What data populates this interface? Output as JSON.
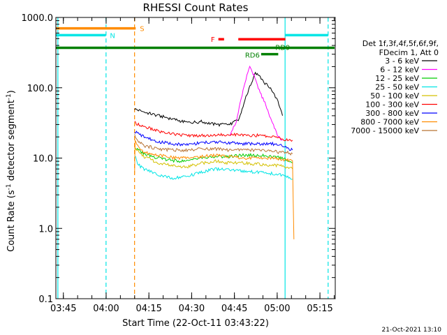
{
  "chart_data": {
    "type": "line",
    "title": "RHESSI Count Rates",
    "xlabel": "Start Time (22-Oct-11 03:43:22)",
    "ylabel_prefix": "Count Rate (s",
    "ylabel_sup": "-1",
    "ylabel_mid": " detector segment",
    "ylabel_sup2": "-1",
    "ylabel_suffix": ")",
    "y_scale": "log",
    "ylim": [
      0.1,
      1000
    ],
    "y_ticks": [
      {
        "value": 0.1,
        "label": "0.1"
      },
      {
        "value": 1,
        "label": "1.0"
      },
      {
        "value": 10,
        "label": "10.0"
      },
      {
        "value": 100,
        "label": "100.0"
      },
      {
        "value": 1000,
        "label": "1000.0"
      }
    ],
    "x_range_minutes": [
      -1,
      97
    ],
    "x_ticks": [
      {
        "value": 1.63,
        "label": "03:45"
      },
      {
        "value": 16.63,
        "label": "04:00"
      },
      {
        "value": 31.63,
        "label": "04:15"
      },
      {
        "value": 46.63,
        "label": "04:30"
      },
      {
        "value": 61.63,
        "label": "04:45"
      },
      {
        "value": 76.63,
        "label": "05:00"
      },
      {
        "value": 91.63,
        "label": "05:15"
      }
    ],
    "legend_header": [
      "Det 1f,3f,4f,5f,6f,9f,",
      "FDecim 1, Att 0"
    ],
    "series": [
      {
        "name": "3 - 6 keV",
        "color": "#000000",
        "points": [
          [
            26.6,
            50
          ],
          [
            30,
            45
          ],
          [
            35,
            40
          ],
          [
            40,
            36
          ],
          [
            45,
            32
          ],
          [
            50,
            33
          ],
          [
            55,
            30
          ],
          [
            60,
            30
          ],
          [
            63,
            35
          ],
          [
            65,
            60
          ],
          [
            67,
            105
          ],
          [
            69,
            160
          ],
          [
            70,
            150
          ],
          [
            72,
            120
          ],
          [
            74,
            100
          ],
          [
            76,
            75
          ],
          [
            77.5,
            55
          ],
          [
            78.5,
            40
          ]
        ]
      },
      {
        "name": "6 - 12 keV",
        "color": "#ff00ff",
        "points": [
          [
            60,
            22
          ],
          [
            62,
            30
          ],
          [
            64,
            70
          ],
          [
            66,
            150
          ],
          [
            67,
            200
          ],
          [
            68.5,
            150
          ],
          [
            70,
            100
          ],
          [
            72,
            65
          ],
          [
            74,
            40
          ],
          [
            76,
            25
          ],
          [
            77,
            20
          ],
          [
            78.5,
            18
          ]
        ]
      },
      {
        "name": "12 - 25 keV",
        "color": "#00cc00",
        "points": [
          [
            26.6,
            14
          ],
          [
            30,
            11.5
          ],
          [
            35,
            10
          ],
          [
            40,
            9.2
          ],
          [
            45,
            9
          ],
          [
            50,
            10
          ],
          [
            55,
            10.5
          ],
          [
            60,
            10.5
          ],
          [
            65,
            11
          ],
          [
            70,
            11
          ],
          [
            75,
            10.5
          ],
          [
            78,
            10
          ],
          [
            80,
            9.5
          ],
          [
            82,
            8.5
          ]
        ]
      },
      {
        "name": "25 - 50 keV",
        "color": "#00e5e5",
        "points": [
          [
            26.6,
            11
          ],
          [
            28,
            8
          ],
          [
            30,
            7
          ],
          [
            35,
            5.8
          ],
          [
            40,
            5.2
          ],
          [
            45,
            5.5
          ],
          [
            50,
            6.3
          ],
          [
            55,
            7
          ],
          [
            60,
            6.8
          ],
          [
            65,
            6.5
          ],
          [
            70,
            6.3
          ],
          [
            75,
            6
          ],
          [
            78,
            5.8
          ],
          [
            82,
            5
          ]
        ]
      },
      {
        "name": "50 - 100 keV",
        "color": "#d4c000",
        "points": [
          [
            26.6,
            15
          ],
          [
            28,
            12
          ],
          [
            30,
            10.5
          ],
          [
            35,
            8.5
          ],
          [
            40,
            7.8
          ],
          [
            45,
            7.5
          ],
          [
            50,
            8.5
          ],
          [
            55,
            9
          ],
          [
            60,
            8.5
          ],
          [
            65,
            8.5
          ],
          [
            70,
            8.2
          ],
          [
            75,
            8
          ],
          [
            78,
            7.8
          ],
          [
            82,
            7
          ]
        ]
      },
      {
        "name": "100 - 300 keV",
        "color": "#ff0000",
        "points": [
          [
            26.6,
            32
          ],
          [
            30,
            28
          ],
          [
            35,
            24
          ],
          [
            40,
            22
          ],
          [
            45,
            21
          ],
          [
            50,
            21
          ],
          [
            55,
            21
          ],
          [
            60,
            22
          ],
          [
            65,
            21
          ],
          [
            70,
            21
          ],
          [
            75,
            20
          ],
          [
            78,
            19
          ],
          [
            80,
            18
          ],
          [
            82,
            18
          ]
        ]
      },
      {
        "name": "300 - 800 keV",
        "color": "#0000ff",
        "points": [
          [
            26.6,
            24
          ],
          [
            30,
            20
          ],
          [
            35,
            17
          ],
          [
            40,
            16
          ],
          [
            45,
            15.5
          ],
          [
            50,
            16.5
          ],
          [
            55,
            17
          ],
          [
            60,
            16.5
          ],
          [
            65,
            16
          ],
          [
            70,
            16
          ],
          [
            75,
            16
          ],
          [
            78,
            15
          ],
          [
            80,
            14
          ],
          [
            82,
            13
          ]
        ]
      },
      {
        "name": "800 - 7000 keV",
        "color": "#ff8c00",
        "points": [
          [
            26.6,
            6
          ],
          [
            26.8,
            18
          ],
          [
            28,
            14
          ],
          [
            30,
            12
          ],
          [
            35,
            11
          ],
          [
            40,
            10.2
          ],
          [
            45,
            10
          ],
          [
            50,
            10.5
          ],
          [
            55,
            11
          ],
          [
            60,
            10.5
          ],
          [
            65,
            10
          ],
          [
            70,
            10
          ],
          [
            75,
            10
          ],
          [
            78,
            9.6
          ],
          [
            80,
            9.5
          ],
          [
            82,
            9.3
          ],
          [
            82.5,
            0.7
          ]
        ]
      },
      {
        "name": "7000 - 15000 keV",
        "color": "#b87333",
        "points": [
          [
            26.6,
            21
          ],
          [
            28,
            17
          ],
          [
            30,
            15
          ],
          [
            35,
            13.5
          ],
          [
            40,
            13
          ],
          [
            45,
            13
          ],
          [
            50,
            13.5
          ],
          [
            55,
            13.5
          ],
          [
            60,
            13
          ],
          [
            65,
            13
          ],
          [
            70,
            13
          ],
          [
            75,
            12.5
          ],
          [
            78,
            12
          ],
          [
            80,
            12
          ],
          [
            82,
            11.5
          ]
        ]
      }
    ],
    "state_bars": [
      {
        "label": "S",
        "color": "#ff8c00",
        "y": 700,
        "x0": -1,
        "x1": 27
      },
      {
        "label": "N",
        "color": "#00e5e5",
        "y": 560,
        "x0": -1,
        "x1": 16.5
      },
      {
        "label": "",
        "color": "#00e5e5",
        "y": 560,
        "x0": 79.5,
        "x1": 94.5
      },
      {
        "label": "F",
        "color": "#ff0000",
        "y": 490,
        "x0": 56,
        "x1": 58
      },
      {
        "label": "",
        "color": "#ff0000",
        "y": 490,
        "x0": 63,
        "x1": 79.5
      },
      {
        "label": "RD9",
        "color": "#008000",
        "y": 370,
        "x0": -1,
        "x1": 97
      },
      {
        "label": "RD6",
        "color": "#008000",
        "y": 300,
        "x0": 71,
        "x1": 77
      }
    ],
    "vertical_lines": [
      {
        "x": -0.3,
        "color": "#00e5e5",
        "style": "solid"
      },
      {
        "x": 16.6,
        "color": "#00e5e5",
        "style": "dashed"
      },
      {
        "x": 26.6,
        "color": "#ff8c00",
        "style": "dashed"
      },
      {
        "x": 79.4,
        "color": "#00e5e5",
        "style": "solid"
      },
      {
        "x": 94.5,
        "color": "#00e5e5",
        "style": "dashed"
      }
    ],
    "footer_date": "21-Oct-2021 13:10"
  }
}
